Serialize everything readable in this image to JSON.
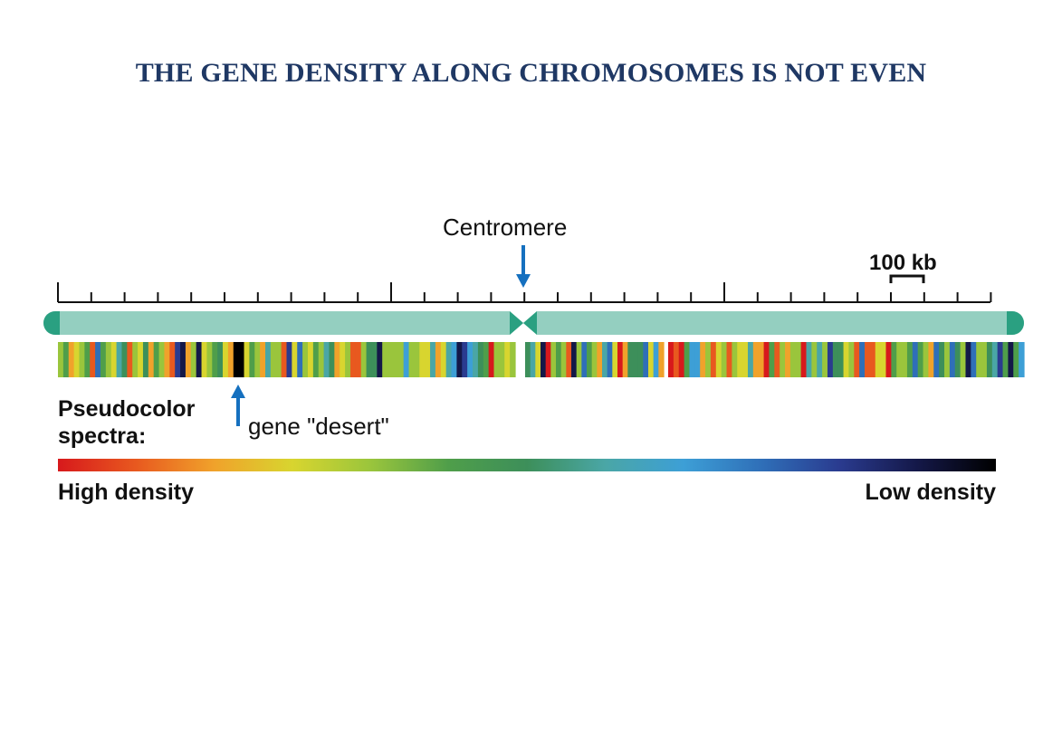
{
  "title": "THE GENE DENSITY ALONG CHROMOSOMES IS NOT EVEN",
  "labels": {
    "centromere": "Centromere",
    "scale": "100 kb",
    "gene_desert": "gene \"desert\"",
    "spectra_line1": "Pseudocolor",
    "spectra_line2": "spectra:",
    "high_density": "High density",
    "low_density": "Low density"
  },
  "colors": {
    "title": "#1f3864",
    "chromosome_body": "#94cfc0",
    "chromosome_cap": "#2aa081",
    "arrow": "#1570bf",
    "ruler": "#111111"
  },
  "spectrum_stops": [
    "#d7191c",
    "#e8591f",
    "#f0a22b",
    "#d8d52f",
    "#9ac53c",
    "#4f9e4a",
    "#3d8f5a",
    "#4aa6a6",
    "#3d9fd6",
    "#2f6fb8",
    "#2a3b8f",
    "#141848",
    "#000000"
  ],
  "density_track_segment_count": 180
}
